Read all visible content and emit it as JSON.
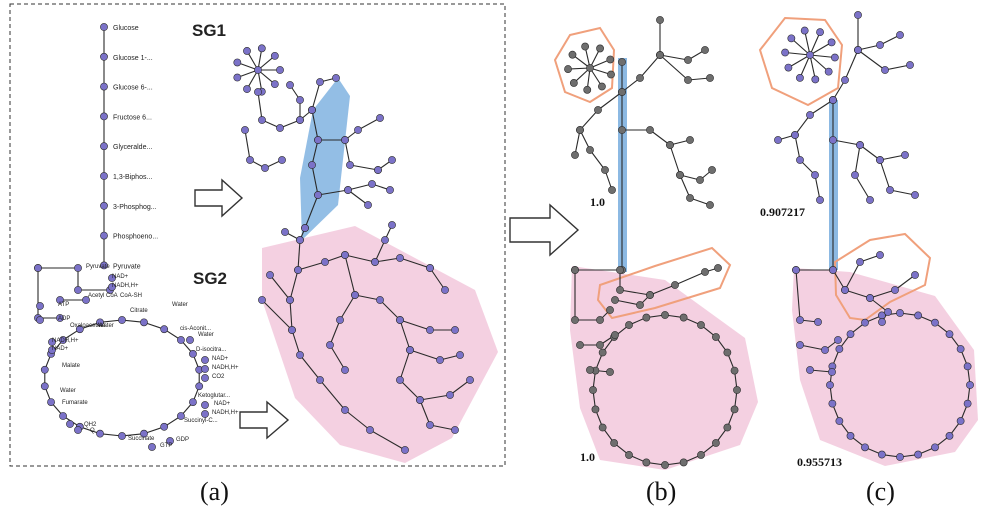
{
  "panel_a": {
    "sg1_title": "SG1",
    "sg2_title": "SG2",
    "chain_labels": [
      "Glucose",
      "Glucose 1-...",
      "Glucose 6-...",
      "Fructose 6...",
      "Glyceralde...",
      "1,3-Biphos...",
      "3-Phosphog...",
      "Phosphoeno...",
      "Pyruvate"
    ],
    "cycle_labels": [
      "Pyruvate",
      "NAD+",
      "NADH,H+",
      "Acetyl CoA",
      "CoA-SH",
      "ATP",
      "ADP",
      "Oxaloacetate",
      "Water",
      "Citrate",
      "Water",
      "cis-Aconit...",
      "Water",
      "D-isocitra...",
      "NAD+",
      "NADH,H+",
      "CO2",
      "Ketoglutar...",
      "NAD+",
      "NADH,H+",
      "Succinyl-C...",
      "GDP",
      "GTP",
      "Succinate",
      "Q",
      "QH2",
      "Fumarate",
      "Water",
      "Malate",
      "NAD+",
      "NADH,H+"
    ]
  },
  "panel_b": {
    "score_top": "1.0",
    "score_bottom": "1.0"
  },
  "panel_c": {
    "score_top": "0.907217",
    "score_bottom": "0.955713"
  },
  "captions": {
    "a": "(a)",
    "b": "(b)",
    "c": "(c)"
  },
  "colors": {
    "node_purple": "#7b72c8",
    "node_gray": "#6e6e6e",
    "edge": "#2a2a2a",
    "pink_region": "#f2c8dc",
    "blue_region": "#6fa8dc",
    "orange_outline": "#f0a07c"
  }
}
